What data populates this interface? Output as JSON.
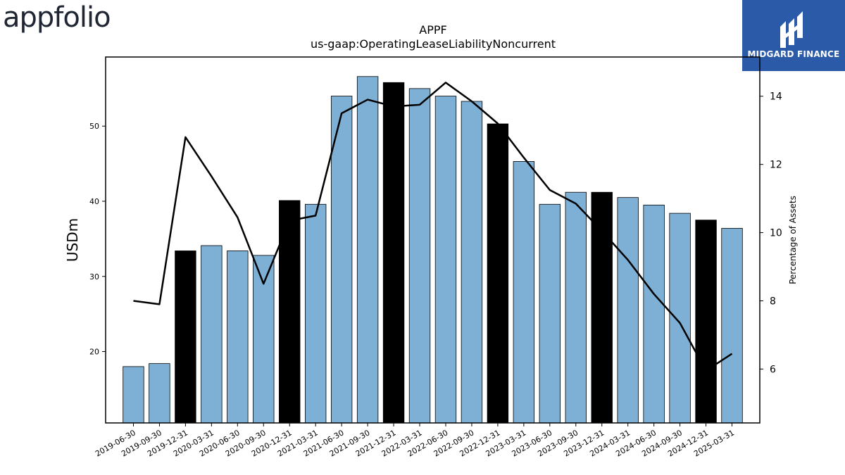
{
  "header": {
    "company_logo_text": "appfolio",
    "brand_name": "MIDGARD FINANCE"
  },
  "colors": {
    "bar_default": "#7eb0d5",
    "bar_highlight": "#000000",
    "line": "#000000",
    "brand_bg": "#2b5aa8"
  },
  "chart_data": {
    "type": "bar",
    "title": "APPF",
    "subtitle": "us-gaap:OperatingLeaseLiabilityNoncurrent",
    "ylabel": "USDm",
    "y2label": "Percentage of Assets",
    "ylim": [
      10.5,
      59.2
    ],
    "y2lim": [
      4.42,
      15.15
    ],
    "yticks": [
      20,
      30,
      40,
      50
    ],
    "y2ticks": [
      6,
      8,
      10,
      12,
      14
    ],
    "categories": [
      "2019-06-30",
      "2019-09-30",
      "2019-12-31",
      "2020-03-31",
      "2020-06-30",
      "2020-09-30",
      "2020-12-31",
      "2021-03-31",
      "2021-06-30",
      "2021-09-30",
      "2021-12-31",
      "2022-03-31",
      "2022-06-30",
      "2022-09-30",
      "2022-12-31",
      "2023-03-31",
      "2023-06-30",
      "2023-09-30",
      "2023-12-31",
      "2024-03-31",
      "2024-06-30",
      "2024-09-30",
      "2024-12-31",
      "2025-03-31"
    ],
    "series": [
      {
        "kind": "bar",
        "values": [
          18.0,
          18.4,
          33.4,
          34.1,
          33.4,
          32.8,
          40.1,
          39.6,
          54.0,
          56.6,
          55.8,
          55.0,
          54.0,
          53.3,
          50.3,
          45.3,
          39.6,
          41.2,
          41.2,
          40.5,
          39.5,
          38.4,
          37.5,
          36.4
        ],
        "highlight": [
          false,
          false,
          true,
          false,
          false,
          false,
          true,
          false,
          false,
          false,
          true,
          false,
          false,
          false,
          true,
          false,
          false,
          false,
          true,
          false,
          false,
          false,
          true,
          false
        ]
      },
      {
        "kind": "line",
        "axis": "right",
        "values": [
          8.0,
          7.9,
          12.8,
          11.65,
          10.45,
          8.5,
          10.35,
          10.5,
          13.5,
          13.9,
          13.7,
          13.75,
          14.4,
          13.85,
          13.2,
          12.2,
          11.25,
          10.85,
          10.05,
          9.2,
          8.2,
          7.35,
          5.95,
          6.45
        ]
      }
    ],
    "grid": false,
    "legend": "none"
  }
}
